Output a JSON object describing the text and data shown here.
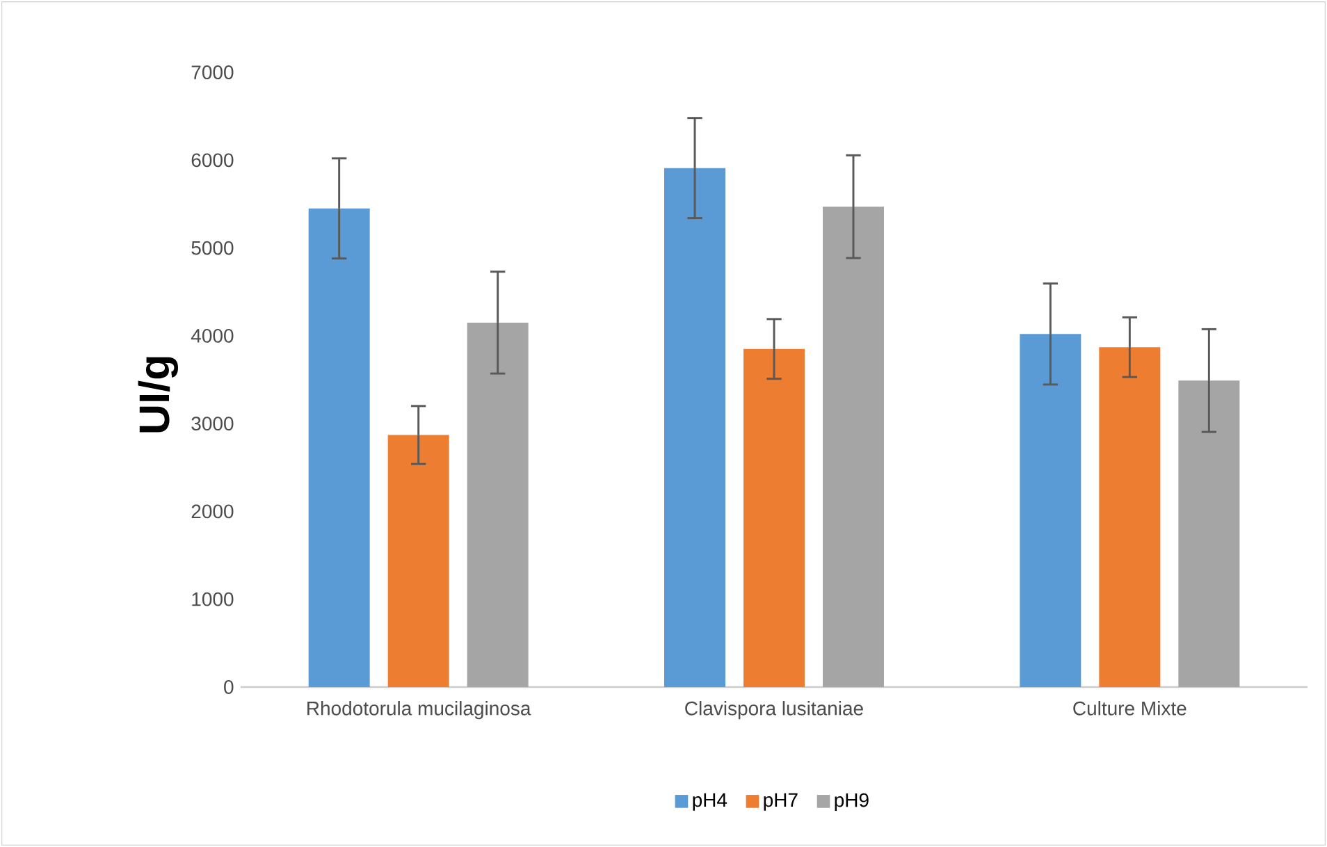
{
  "chart_data": {
    "type": "bar",
    "ylabel": "UI/g",
    "categories": [
      "Rhodotorula mucilaginosa",
      "Clavispora lusitaniae",
      "Culture Mixte"
    ],
    "series": [
      {
        "name": "pH4",
        "color": "#5b9bd5",
        "values": [
          5450,
          5910,
          4020
        ],
        "errors": [
          570,
          570,
          575
        ]
      },
      {
        "name": "pH7",
        "color": "#ed7d31",
        "values": [
          2870,
          3850,
          3870
        ],
        "errors": [
          330,
          340,
          340
        ]
      },
      {
        "name": "pH9",
        "color": "#a5a5a5",
        "values": [
          4150,
          5470,
          3490
        ],
        "errors": [
          580,
          585,
          585
        ]
      }
    ],
    "ylim": [
      0,
      7000
    ],
    "yticks": [
      0,
      1000,
      2000,
      3000,
      4000,
      5000,
      6000,
      7000
    ],
    "legend": "bottom"
  }
}
